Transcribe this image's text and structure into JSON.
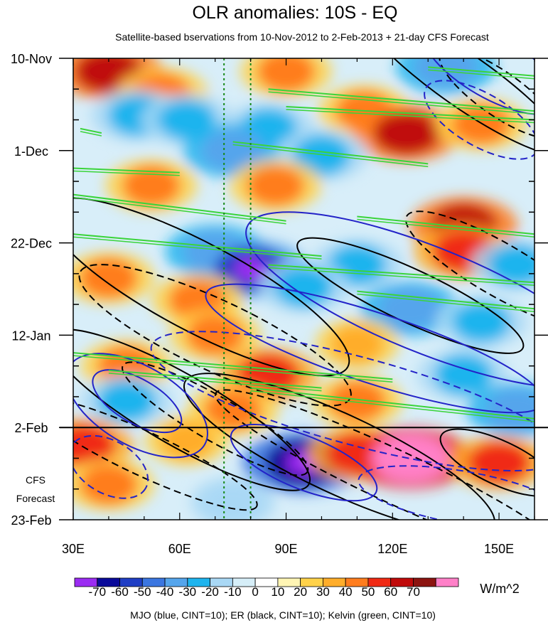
{
  "chart_data": {
    "type": "heatmap",
    "title": "OLR anomalies: 10S - EQ",
    "subtitle": "Satellite-based bservations from 10-Nov-2012 to 2-Feb-2013 + 21-day CFS Forecast",
    "x_range": [
      30,
      160
    ],
    "x_ticks": [
      30,
      60,
      90,
      120,
      150
    ],
    "x_tick_labels": [
      "30E",
      "60E",
      "90E",
      "120E",
      "150E"
    ],
    "y_range_days": [
      0,
      105
    ],
    "y_ticks_days": [
      0,
      21,
      42,
      63,
      84,
      105
    ],
    "y_tick_labels": [
      "10-Nov",
      "1-Dec",
      "22-Dec",
      "12-Jan",
      "2-Feb",
      "23-Feb"
    ],
    "forecast_start_day": 84,
    "forecast_label_line1": "CFS",
    "forecast_label_line2": "Forecast",
    "reference_longitudes": [
      72.5,
      80
    ],
    "colorbar": {
      "levels": [
        "-70",
        "-60",
        "-50",
        "-40",
        "-30",
        "-20",
        "-10",
        "0",
        "10",
        "20",
        "30",
        "40",
        "50",
        "60",
        "70"
      ],
      "colors": [
        "#9b2cf2",
        "#0a0a9a",
        "#1f3ec4",
        "#3b76e0",
        "#55a5ec",
        "#1eb4ee",
        "#a9d8f5",
        "#d6eef8",
        "#ffffff",
        "#fff5b4",
        "#ffd24a",
        "#ffad2a",
        "#ff7d1e",
        "#f02a14",
        "#c00a0a",
        "#8c1410",
        "#ff80c8"
      ],
      "units": "W/m^2"
    },
    "anomaly_centers": [
      {
        "lon": 40,
        "day": 3,
        "value": 50
      },
      {
        "lon": 55,
        "day": 8,
        "value": 30
      },
      {
        "lon": 90,
        "day": 3,
        "value": 30
      },
      {
        "lon": 135,
        "day": 2,
        "value": -40
      },
      {
        "lon": 48,
        "day": 13,
        "value": -30
      },
      {
        "lon": 62,
        "day": 14,
        "value": -30
      },
      {
        "lon": 85,
        "day": 16,
        "value": -30
      },
      {
        "lon": 112,
        "day": 12,
        "value": 30
      },
      {
        "lon": 124,
        "day": 17,
        "value": 50
      },
      {
        "lon": 145,
        "day": 15,
        "value": 30
      },
      {
        "lon": 75,
        "day": 21,
        "value": -40
      },
      {
        "lon": 100,
        "day": 22,
        "value": -30
      },
      {
        "lon": 52,
        "day": 29,
        "value": 30
      },
      {
        "lon": 87,
        "day": 29,
        "value": 30
      },
      {
        "lon": 140,
        "day": 38,
        "value": 50
      },
      {
        "lon": 70,
        "day": 44,
        "value": -40
      },
      {
        "lon": 80,
        "day": 48,
        "value": -60
      },
      {
        "lon": 110,
        "day": 47,
        "value": -30
      },
      {
        "lon": 140,
        "day": 44,
        "value": 40
      },
      {
        "lon": 155,
        "day": 47,
        "value": -30
      },
      {
        "lon": 40,
        "day": 50,
        "value": 30
      },
      {
        "lon": 65,
        "day": 55,
        "value": 30
      },
      {
        "lon": 95,
        "day": 52,
        "value": -30
      },
      {
        "lon": 125,
        "day": 57,
        "value": -40
      },
      {
        "lon": 145,
        "day": 60,
        "value": -30
      },
      {
        "lon": 70,
        "day": 63,
        "value": 30
      },
      {
        "lon": 110,
        "day": 65,
        "value": 20
      },
      {
        "lon": 45,
        "day": 70,
        "value": 30
      },
      {
        "lon": 85,
        "day": 72,
        "value": 40
      },
      {
        "lon": 140,
        "day": 72,
        "value": -30
      },
      {
        "lon": 45,
        "day": 78,
        "value": -30
      },
      {
        "lon": 75,
        "day": 80,
        "value": 30
      },
      {
        "lon": 110,
        "day": 78,
        "value": 30
      },
      {
        "lon": 155,
        "day": 80,
        "value": -40
      },
      {
        "lon": 33,
        "day": 88,
        "value": 40
      },
      {
        "lon": 62,
        "day": 87,
        "value": 20
      },
      {
        "lon": 95,
        "day": 92,
        "value": -70
      },
      {
        "lon": 110,
        "day": 90,
        "value": 40
      },
      {
        "lon": 125,
        "day": 91,
        "value": 70
      },
      {
        "lon": 150,
        "day": 92,
        "value": 40
      },
      {
        "lon": 40,
        "day": 97,
        "value": 30
      },
      {
        "lon": 75,
        "day": 101,
        "value": -20
      }
    ],
    "contour_series": [
      {
        "name": "MJO",
        "color": "blue",
        "cint": 10
      },
      {
        "name": "ER",
        "color": "black",
        "cint": 10
      },
      {
        "name": "Kelvin",
        "color": "green",
        "cint": 10
      }
    ],
    "contours": {
      "mjo": [
        {
          "clon": 148,
          "cday": 2,
          "rx": 22,
          "ry": 7,
          "angle": 30,
          "dash": false
        },
        {
          "clon": 145,
          "cday": 14,
          "rx": 18,
          "ry": 6,
          "angle": 30,
          "dash": true
        },
        {
          "clon": 130,
          "cday": 55,
          "rx": 55,
          "ry": 12,
          "angle": 22,
          "dash": false
        },
        {
          "clon": 115,
          "cday": 66,
          "rx": 50,
          "ry": 8,
          "angle": 18,
          "dash": false
        },
        {
          "clon": 110,
          "cday": 78,
          "rx": 60,
          "ry": 10,
          "angle": 15,
          "dash": true
        },
        {
          "clon": 48,
          "cday": 78,
          "rx": 14,
          "ry": 5,
          "angle": 30,
          "dash": false
        },
        {
          "clon": 48,
          "cday": 79,
          "rx": 22,
          "ry": 9,
          "angle": 30,
          "dash": false
        },
        {
          "clon": 95,
          "cday": 92,
          "rx": 22,
          "ry": 6,
          "angle": 22,
          "dash": false
        },
        {
          "clon": 140,
          "cday": 100,
          "rx": 30,
          "ry": 6,
          "angle": 10,
          "dash": true
        },
        {
          "clon": 40,
          "cday": 93,
          "rx": 12,
          "ry": 6,
          "angle": 30,
          "dash": true
        }
      ],
      "er": [
        {
          "clon": 140,
          "cday": 5,
          "rx": 35,
          "ry": 6,
          "angle": 35,
          "dash": false
        },
        {
          "clon": 150,
          "cday": 8,
          "rx": 20,
          "ry": 5,
          "angle": 35,
          "dash": true
        },
        {
          "clon": 65,
          "cday": 52,
          "rx": 48,
          "ry": 10,
          "angle": 28,
          "dash": false
        },
        {
          "clon": 70,
          "cday": 63,
          "rx": 42,
          "ry": 8,
          "angle": 25,
          "dash": true
        },
        {
          "clon": 125,
          "cday": 54,
          "rx": 35,
          "ry": 6,
          "angle": 25,
          "dash": false
        },
        {
          "clon": 150,
          "cday": 48,
          "rx": 30,
          "ry": 6,
          "angle": 30,
          "dash": true
        },
        {
          "clon": 60,
          "cday": 80,
          "rx": 42,
          "ry": 8,
          "angle": 30,
          "dash": false
        },
        {
          "clon": 70,
          "cday": 82,
          "rx": 30,
          "ry": 5,
          "angle": 30,
          "dash": true
        },
        {
          "clon": 105,
          "cday": 90,
          "rx": 48,
          "ry": 9,
          "angle": 25,
          "dash": false
        },
        {
          "clon": 120,
          "cday": 95,
          "rx": 55,
          "ry": 6,
          "angle": 25,
          "dash": true
        },
        {
          "clon": 150,
          "cday": 92,
          "rx": 18,
          "ry": 5,
          "angle": 25,
          "dash": false
        },
        {
          "clon": 50,
          "cday": 90,
          "rx": 35,
          "ry": 5,
          "angle": 25,
          "dash": true
        }
      ],
      "kelvin": [
        {
          "lon1": 130,
          "day1": 2,
          "lon2": 160,
          "day2": 4
        },
        {
          "lon1": 85,
          "day1": 7,
          "lon2": 160,
          "day2": 12
        },
        {
          "lon1": 90,
          "day1": 11,
          "lon2": 160,
          "day2": 14
        },
        {
          "lon1": 32,
          "day1": 16,
          "lon2": 38,
          "day2": 17
        },
        {
          "lon1": 75,
          "day1": 19,
          "lon2": 130,
          "day2": 24
        },
        {
          "lon1": 30,
          "day1": 25,
          "lon2": 60,
          "day2": 26
        },
        {
          "lon1": 30,
          "day1": 31,
          "lon2": 90,
          "day2": 37
        },
        {
          "lon1": 110,
          "day1": 36,
          "lon2": 160,
          "day2": 40
        },
        {
          "lon1": 30,
          "day1": 40,
          "lon2": 100,
          "day2": 45
        },
        {
          "lon1": 85,
          "day1": 47,
          "lon2": 160,
          "day2": 51
        },
        {
          "lon1": 110,
          "day1": 53,
          "lon2": 160,
          "day2": 57
        },
        {
          "lon1": 30,
          "day1": 67,
          "lon2": 120,
          "day2": 73
        },
        {
          "lon1": 40,
          "day1": 71,
          "lon2": 100,
          "day2": 75
        },
        {
          "lon1": 80,
          "day1": 75,
          "lon2": 160,
          "day2": 82
        }
      ]
    },
    "footer": "MJO (blue, CINT=10); ER (black, CINT=10); Kelvin (green, CINT=10)"
  }
}
